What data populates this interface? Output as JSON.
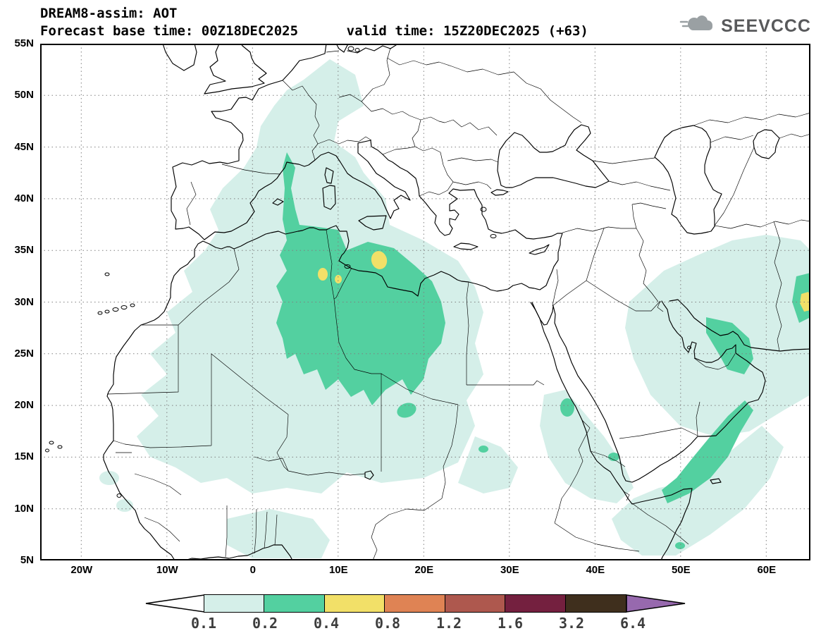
{
  "header": {
    "title": "DREAM8-assim: AOT",
    "forecast_line": "Forecast base time: 00Z18DEC2025      valid time: 15Z20DEC2025 (+63)",
    "logo_text": "SEEVCCC"
  },
  "map": {
    "y_ticks": [
      "55N",
      "50N",
      "45N",
      "40N",
      "35N",
      "30N",
      "25N",
      "20N",
      "15N",
      "10N",
      "5N"
    ],
    "x_ticks": [
      "20W",
      "10W",
      "0",
      "10E",
      "20E",
      "30E",
      "40E",
      "50E",
      "60E"
    ]
  },
  "legend": {
    "boundary_labels": [
      "0.1",
      "0.2",
      "0.4",
      "0.8",
      "1.2",
      "1.6",
      "3.2",
      "6.4"
    ],
    "segment_colors": [
      "#d5efe9",
      "#53d0a0",
      "#f2e068",
      "#df8354",
      "#ae584e",
      "#74203f",
      "#3f2f1d"
    ],
    "below_min_color": "#ffffff",
    "above_max_color": "#9769ae"
  },
  "chart_data": {
    "type": "heatmap",
    "title": "DREAM8-assim: AOT",
    "base_time": "00Z18DEC2025",
    "valid_time": "15Z20DEC2025 (+63)",
    "x_ticks": [
      "20W",
      "10W",
      "0",
      "10E",
      "20E",
      "30E",
      "40E",
      "50E",
      "60E"
    ],
    "y_ticks": [
      "55N",
      "50N",
      "45N",
      "40N",
      "35N",
      "30N",
      "25N",
      "20N",
      "15N",
      "10N",
      "5N"
    ],
    "lon_range_deg": [
      -25,
      65
    ],
    "lat_range_deg": [
      5,
      55
    ],
    "contour_levels": [
      0.1,
      0.2,
      0.4,
      0.8,
      1.2,
      1.6,
      3.2,
      6.4
    ],
    "features": [
      {
        "area": "N Algeria - Tunisia - NW Libya plume",
        "max_level": 0.8,
        "peak_points_lonlat": [
          [
            8,
            33
          ],
          [
            10,
            32
          ],
          [
            14.5,
            34
          ]
        ]
      },
      {
        "area": "Tongue through E Spain / Gulf of Lion into S France",
        "max_level": 0.4
      },
      {
        "area": "Broad Sahara-Sahel haze (20W-27E, 12N-38N)",
        "max_level": 0.2
      },
      {
        "area": "Western/Central Europe faint band (up to ~53N)",
        "max_level": 0.1
      },
      {
        "area": "Red Sea - Sudan coast",
        "max_level": 0.4
      },
      {
        "area": "Persian Gulf - UAE - Strait of Hormuz",
        "max_level": 0.4
      },
      {
        "area": "Somalia - Gulf of Aden - Arabian Sea band",
        "max_level": 0.4
      },
      {
        "area": "SE Iran / map right edge near 30N",
        "max_level": 0.8
      }
    ]
  }
}
